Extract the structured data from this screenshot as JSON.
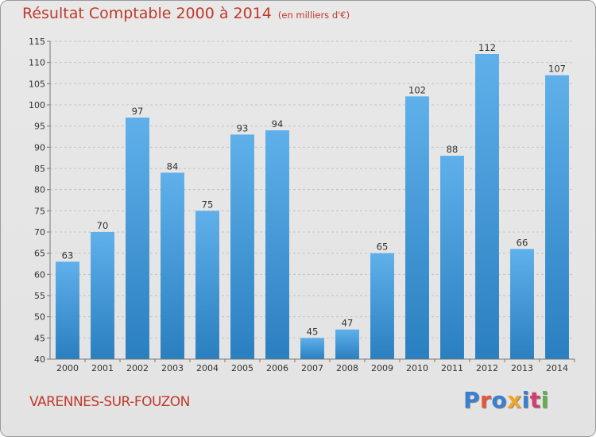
{
  "title": "Résultat Comptable 2000 à 2014",
  "unit": "(en milliers d'€)",
  "town": "VARENNES-SUR-FOUZON",
  "logo": {
    "text": "Proxiti",
    "colors": [
      "#3a7fd0",
      "#e8553a",
      "#3a7fd0",
      "#f2a52b",
      "#3a7fd0",
      "#d23f6a",
      "#5fb34a"
    ]
  },
  "colors": {
    "bar_light": "#5fb0ea",
    "bar_dark": "#2a7fc0",
    "title": "#c0392b"
  },
  "chart_data": {
    "type": "bar",
    "title": "Résultat Comptable 2000 à 2014",
    "subtitle": "(en milliers d'€)",
    "categories": [
      "2000",
      "2001",
      "2002",
      "2003",
      "2004",
      "2005",
      "2006",
      "2007",
      "2008",
      "2009",
      "2010",
      "2011",
      "2012",
      "2013",
      "2014"
    ],
    "values": [
      63,
      70,
      97,
      84,
      75,
      93,
      94,
      45,
      47,
      65,
      102,
      88,
      112,
      66,
      107
    ],
    "ylim": [
      40,
      115
    ],
    "yticks": [
      40,
      45,
      50,
      55,
      60,
      65,
      70,
      75,
      80,
      85,
      90,
      95,
      100,
      105,
      110,
      115
    ],
    "xlabel": "",
    "ylabel": "",
    "grid": true
  }
}
